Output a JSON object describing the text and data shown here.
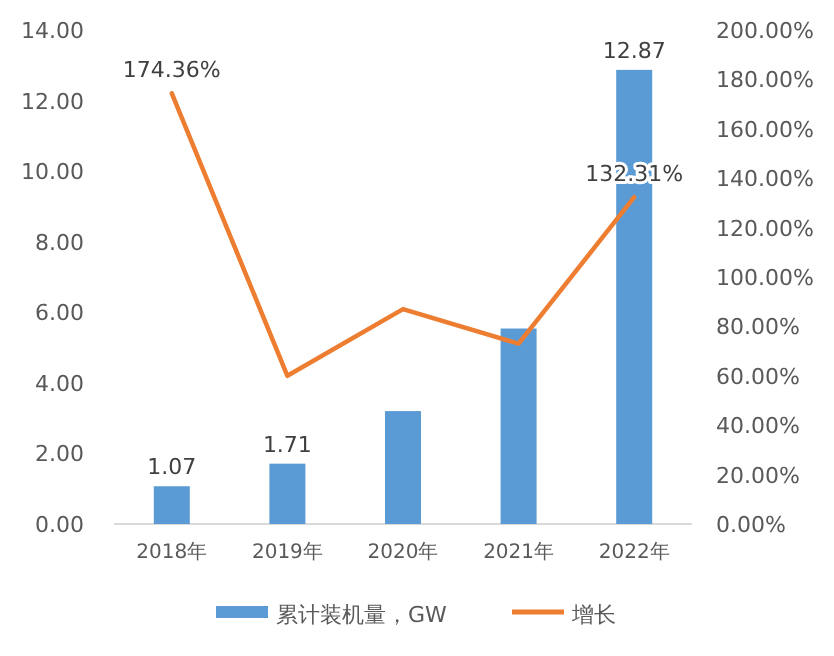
{
  "chart_data": {
    "type": "bar",
    "categories": [
      "2018年",
      "2019年",
      "2020年",
      "2021年",
      "2022年"
    ],
    "series": [
      {
        "name": "累计装机量，GW",
        "color": "#5b9bd5",
        "values": [
          1.07,
          1.71,
          3.2,
          5.54,
          12.87
        ],
        "value_labels": [
          "1.07",
          "1.71",
          null,
          null,
          "12.87"
        ]
      },
      {
        "name": "增长",
        "type": "line",
        "axis": "y2",
        "color": "#ed7d31",
        "values": [
          174.36,
          60,
          87,
          73,
          132.31
        ],
        "value_labels": [
          "174.36%",
          null,
          null,
          null,
          "132.31%"
        ]
      }
    ],
    "ylim": [
      0,
      14
    ],
    "yticks": [
      {
        "value": 0,
        "label": "0.00"
      },
      {
        "value": 2,
        "label": "2.00"
      },
      {
        "value": 4,
        "label": "4.00"
      },
      {
        "value": 6,
        "label": "6.00"
      },
      {
        "value": 8,
        "label": "8.00"
      },
      {
        "value": 10,
        "label": "10.00"
      },
      {
        "value": 12,
        "label": "12.00"
      },
      {
        "value": 14,
        "label": "14.00"
      }
    ],
    "y2lim": [
      0,
      200
    ],
    "y2ticks": [
      {
        "value": 0,
        "label": "0.00%"
      },
      {
        "value": 20,
        "label": "20.00%"
      },
      {
        "value": 40,
        "label": "40.00%"
      },
      {
        "value": 60,
        "label": "60.00%"
      },
      {
        "value": 80,
        "label": "80.00%"
      },
      {
        "value": 100,
        "label": "100.00%"
      },
      {
        "value": 120,
        "label": "120.00%"
      },
      {
        "value": 140,
        "label": "140.00%"
      },
      {
        "value": 160,
        "label": "160.00%"
      },
      {
        "value": 180,
        "label": "180.00%"
      },
      {
        "value": 200,
        "label": "200.00%"
      }
    ],
    "legend": "bottom"
  }
}
